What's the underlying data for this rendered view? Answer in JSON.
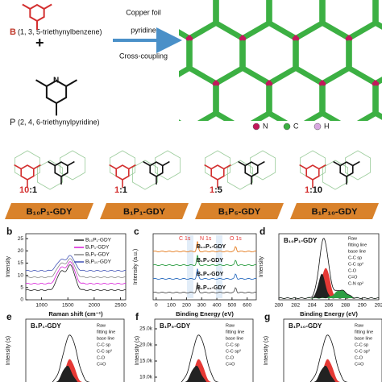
{
  "reaction": {
    "monomer_b_label": "B",
    "monomer_b_name": "(1, 3, 5-triethynylbenzene)",
    "plus": "+",
    "monomer_p_atom": "N",
    "monomer_p_label": "P",
    "monomer_p_name": "(2, 4, 6-triethynylpyridine)",
    "conditions": [
      "Copper foil",
      "pyridine",
      "Cross-coupling"
    ]
  },
  "atom_legend": [
    {
      "symbol": "N",
      "color": "#c2185b"
    },
    {
      "symbol": "C",
      "color": "#3cb043"
    },
    {
      "symbol": "H",
      "color": "#d8a8e0"
    }
  ],
  "ratios": [
    {
      "b": "10",
      "separator": ":",
      "p": "1",
      "name": "B₁₀P₁-GDY"
    },
    {
      "b": "1",
      "separator": ":",
      "p": "1",
      "name": "B₁P₁-GDY"
    },
    {
      "b": "1",
      "separator": ":",
      "p": "5",
      "name": "B₁P₅-GDY"
    },
    {
      "b": "1",
      "separator": ":",
      "p": "10",
      "name": "B₁P₁₀-GDY"
    }
  ],
  "panel_b": {
    "letter": "b",
    "xlabel": "Raman shift (cm⁻¹)",
    "ylabel": "Intensity",
    "xlim": [
      700,
      2600
    ],
    "xticks": [
      1000,
      1500,
      2000,
      2500
    ],
    "ylim": [
      0,
      27
    ],
    "yticks": [
      0,
      5,
      10,
      15,
      20,
      25
    ],
    "series": [
      {
        "name": "B₁₀P₁-GDY",
        "color": "#222222"
      },
      {
        "name": "B₁P₁-GDY",
        "color": "#d81bd8"
      },
      {
        "name": "B₁P₅-GDY",
        "color": "#888888"
      },
      {
        "name": "B₁P₁₀-GDY",
        "color": "#3f51b5"
      }
    ]
  },
  "panel_c": {
    "letter": "c",
    "xlabel": "Binding Energy (eV)",
    "ylabel": "Intensity (a.u.)",
    "xlim": [
      -20,
      660
    ],
    "xticks": [
      0,
      100,
      200,
      300,
      400,
      500,
      600
    ],
    "peaks": [
      "C 1s",
      "N 1s",
      "O 1s"
    ],
    "series": [
      {
        "name": "B₁₀P₁-GDY",
        "color": "#e67e22"
      },
      {
        "name": "B₁P₁-GDY",
        "color": "#2e9e44"
      },
      {
        "name": "B₁P₅-GDY",
        "color": "#2f6fc0"
      },
      {
        "name": "B₁P₁₀-GDY",
        "color": "#555555"
      }
    ]
  },
  "panel_d": {
    "letter": "d",
    "title": "B₁₀P₁-GDY",
    "xlabel": "Binding Energy (eV)",
    "ylabel": "Intensity",
    "xlim": [
      280,
      292
    ],
    "xticks": [
      280,
      282,
      284,
      286,
      288,
      290,
      292
    ],
    "legend": [
      "Raw",
      "fitting line",
      "base line",
      "C-C sp",
      "C-C sp²",
      "C-O",
      "C=O",
      "C-N sp²"
    ]
  },
  "panel_e": {
    "letter": "e",
    "title": "B₁P₁-GDY",
    "ylabel": "Intensity (s)",
    "legend": [
      "Raw",
      "fitting line",
      "base line",
      "C-C sp",
      "C-C sp²",
      "C-O",
      "C=O"
    ]
  },
  "panel_f": {
    "letter": "f",
    "title": "B₁P₅-GDY",
    "ylabel": "Intensity (s)",
    "ylim": [
      8000,
      28000
    ],
    "yticks": [
      {
        "value": 25000,
        "label": "25.0k"
      },
      {
        "value": 20000,
        "label": "20.0k"
      },
      {
        "value": 15000,
        "label": "15.0k"
      },
      {
        "value": 10000,
        "label": "10.0k"
      }
    ],
    "legend": [
      "Raw",
      "fitting line",
      "base line",
      "C-C sp",
      "C-C sp²",
      "C-O",
      "C=O"
    ]
  },
  "panel_g": {
    "letter": "g",
    "title": "B₁P₁₀-GDY",
    "ylabel": "Intensity (s)",
    "legend": [
      "Raw",
      "fitting line",
      "base line",
      "C-C sp",
      "C-C sp²",
      "C-O",
      "C=O"
    ]
  }
}
